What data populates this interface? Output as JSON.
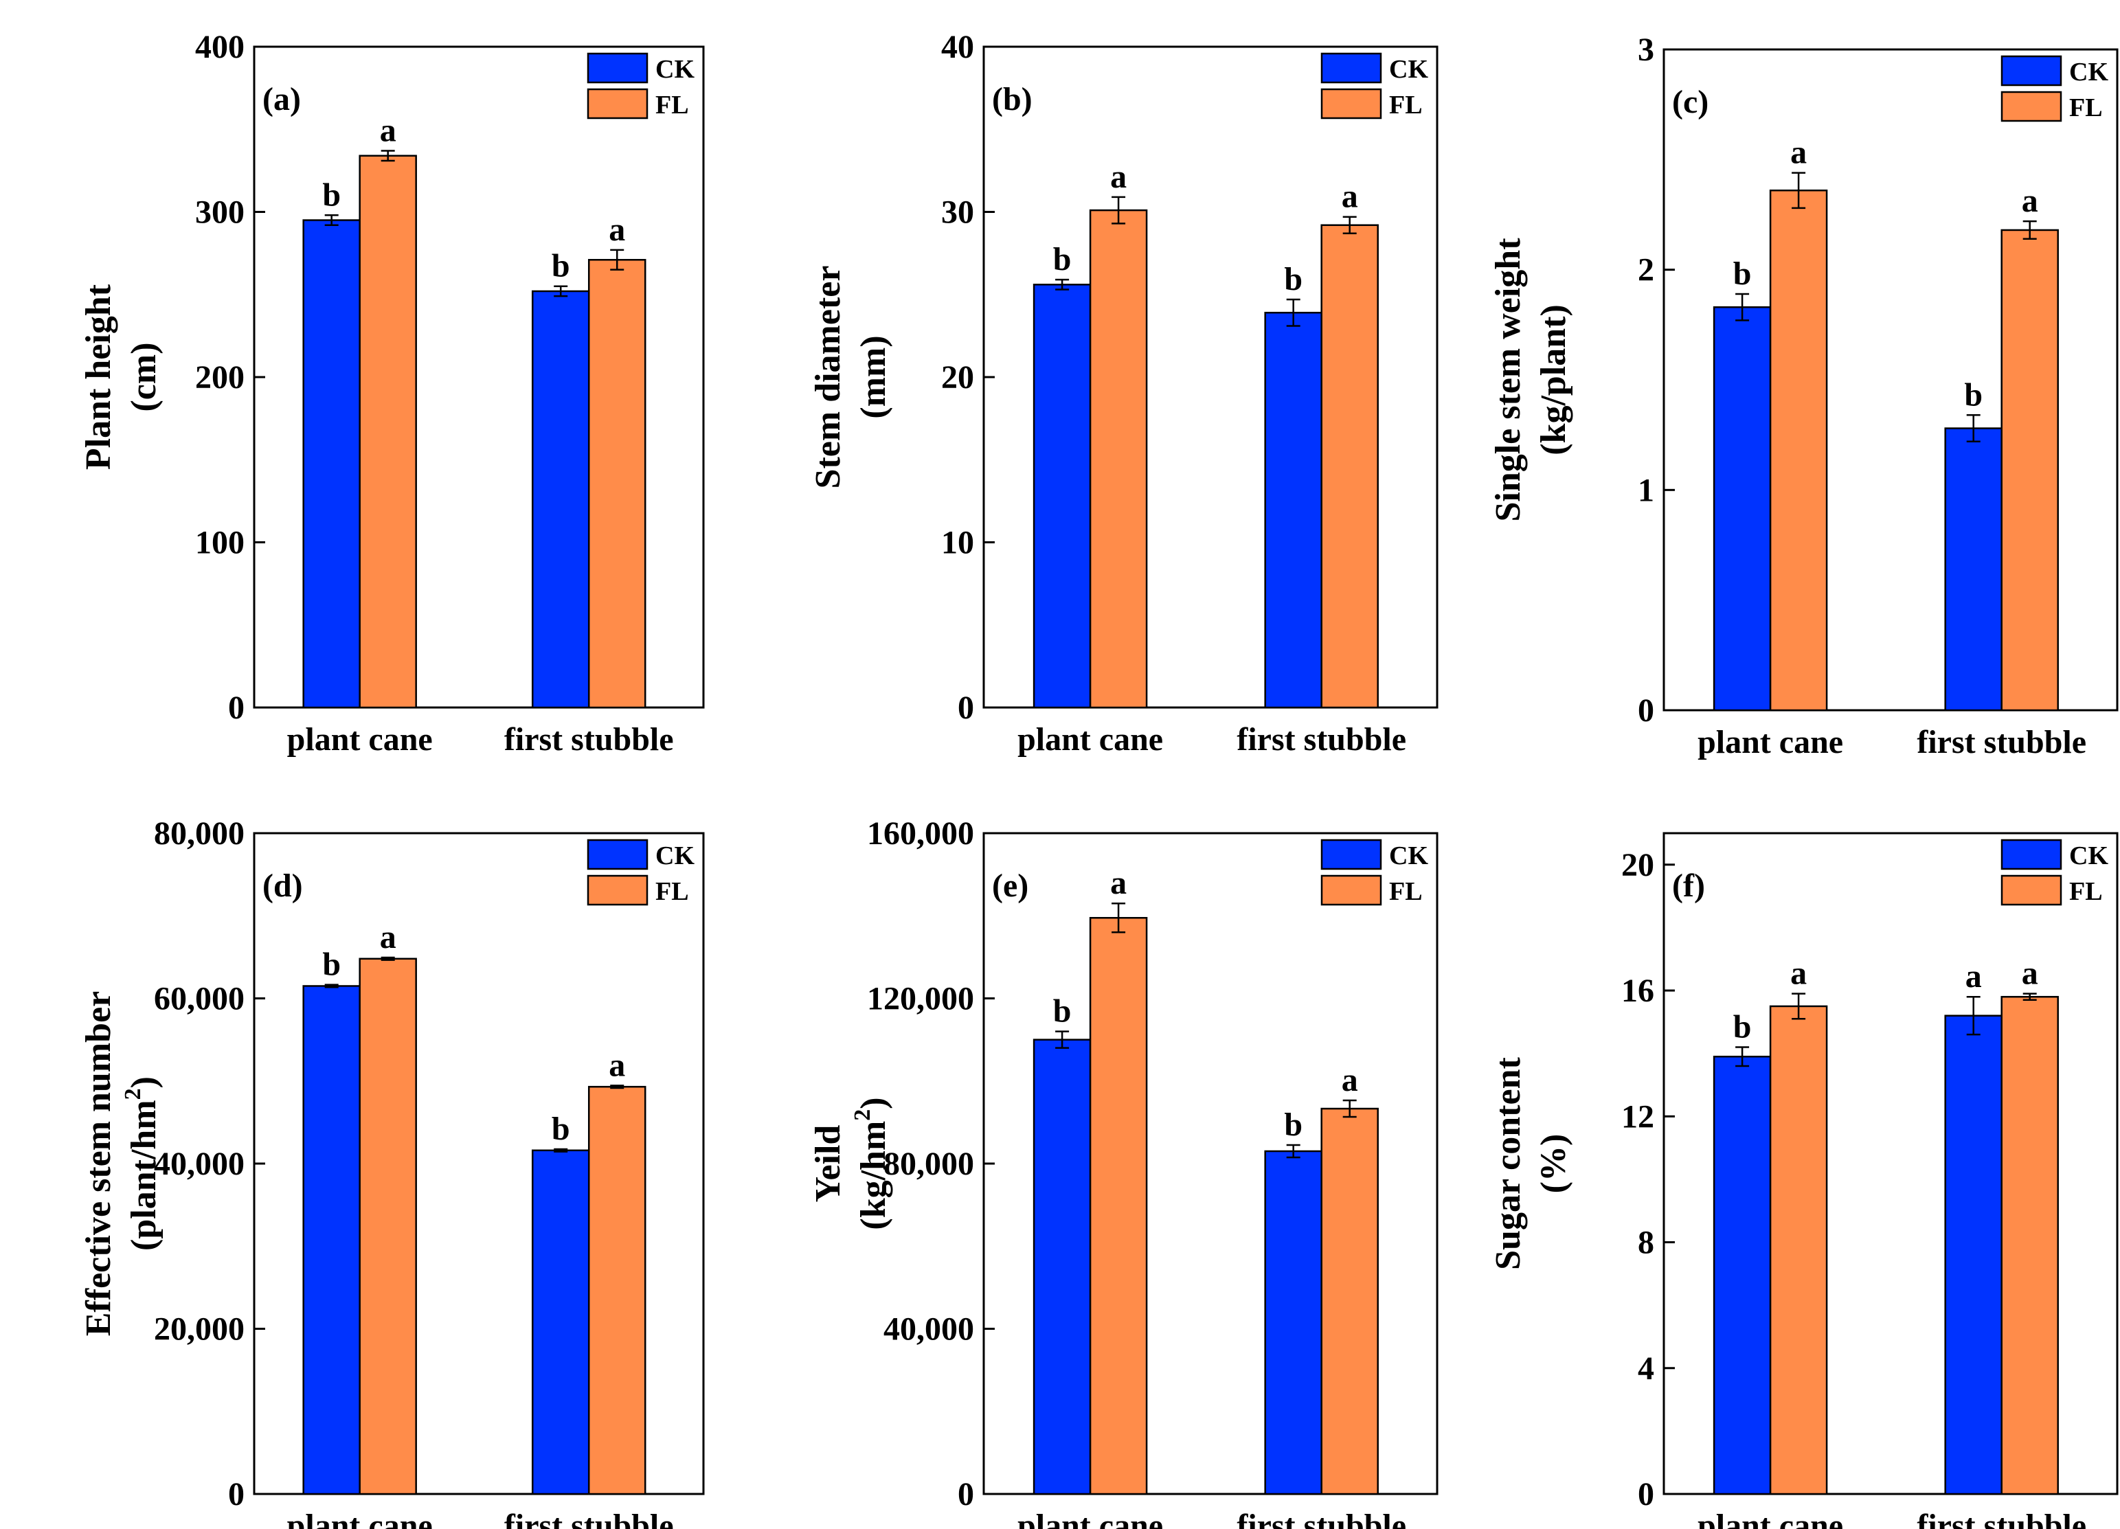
{
  "chart_data": [
    {
      "type": "bar",
      "panel": "(a)",
      "ylabel_line1": "Plant height",
      "ylabel_line2": "(cm)",
      "categories": [
        "plant cane",
        "first stubble"
      ],
      "ylim": [
        0,
        400
      ],
      "yticks": [
        0,
        100,
        200,
        300,
        400
      ],
      "ytick_labels": [
        "0",
        "100",
        "200",
        "300",
        "400"
      ],
      "series": [
        {
          "name": "CK",
          "color": "#0033ff",
          "values": [
            295,
            252
          ],
          "errors": [
            3,
            3
          ],
          "letters": [
            "b",
            "b"
          ]
        },
        {
          "name": "FL",
          "color": "#ff8c4a",
          "values": [
            334,
            271
          ],
          "errors": [
            3,
            6
          ],
          "letters": [
            "a",
            "a"
          ]
        }
      ]
    },
    {
      "type": "bar",
      "panel": "(b)",
      "ylabel_line1": "Stem diameter",
      "ylabel_line2": "(mm)",
      "categories": [
        "plant cane",
        "first stubble"
      ],
      "ylim": [
        0,
        40
      ],
      "yticks": [
        0,
        10,
        20,
        30,
        40
      ],
      "ytick_labels": [
        "0",
        "10",
        "20",
        "30",
        "40"
      ],
      "series": [
        {
          "name": "CK",
          "color": "#0033ff",
          "values": [
            25.6,
            23.9
          ],
          "errors": [
            0.3,
            0.8
          ],
          "letters": [
            "b",
            "b"
          ]
        },
        {
          "name": "FL",
          "color": "#ff8c4a",
          "values": [
            30.1,
            29.2
          ],
          "errors": [
            0.8,
            0.5
          ],
          "letters": [
            "a",
            "a"
          ]
        }
      ]
    },
    {
      "type": "bar",
      "panel": "(c)",
      "ylabel_line1": "Single stem weight",
      "ylabel_line2": "(kg/plant)",
      "categories": [
        "plant cane",
        "first stubble"
      ],
      "ylim": [
        0,
        3
      ],
      "yticks": [
        0,
        1,
        2,
        3
      ],
      "ytick_labels": [
        "0",
        "1",
        "2",
        "3"
      ],
      "series": [
        {
          "name": "CK",
          "color": "#0033ff",
          "values": [
            1.83,
            1.28
          ],
          "errors": [
            0.06,
            0.06
          ],
          "letters": [
            "b",
            "b"
          ]
        },
        {
          "name": "FL",
          "color": "#ff8c4a",
          "values": [
            2.36,
            2.18
          ],
          "errors": [
            0.08,
            0.04
          ],
          "letters": [
            "a",
            "a"
          ]
        }
      ]
    },
    {
      "type": "bar",
      "panel": "(d)",
      "ylabel_line1": "Effective stem number",
      "ylabel_line2": "(plant/hm",
      "ylabel_sup": "2",
      "ylabel_close": ")",
      "categories": [
        "plant cane",
        "first stubble"
      ],
      "ylim": [
        0,
        80000
      ],
      "yticks": [
        0,
        20000,
        40000,
        60000,
        80000
      ],
      "ytick_labels": [
        "0",
        "20,000",
        "40,000",
        "60,000",
        "80,000"
      ],
      "series": [
        {
          "name": "CK",
          "color": "#0033ff",
          "values": [
            61500,
            41600
          ],
          "errors": [
            150,
            150
          ],
          "letters": [
            "b",
            "b"
          ]
        },
        {
          "name": "FL",
          "color": "#ff8c4a",
          "values": [
            64800,
            49300
          ],
          "errors": [
            150,
            150
          ],
          "letters": [
            "a",
            "a"
          ]
        }
      ]
    },
    {
      "type": "bar",
      "panel": "(e)",
      "ylabel_line1": "Yeild",
      "ylabel_line2": "(kg/hm",
      "ylabel_sup": "2",
      "ylabel_close": ")",
      "categories": [
        "plant cane",
        "first stubble"
      ],
      "ylim": [
        0,
        160000
      ],
      "yticks": [
        0,
        40000,
        80000,
        120000,
        160000
      ],
      "ytick_labels": [
        "0",
        "40,000",
        "80,000",
        "120,000",
        "160,000"
      ],
      "series": [
        {
          "name": "CK",
          "color": "#0033ff",
          "values": [
            110000,
            83000
          ],
          "errors": [
            2000,
            1500
          ],
          "letters": [
            "b",
            "b"
          ]
        },
        {
          "name": "FL",
          "color": "#ff8c4a",
          "values": [
            139500,
            93300
          ],
          "errors": [
            3500,
            2000
          ],
          "letters": [
            "a",
            "a"
          ]
        }
      ]
    },
    {
      "type": "bar",
      "panel": "(f)",
      "ylabel_line1": "Sugar content",
      "ylabel_line2": "(%)",
      "categories": [
        "plant cane",
        "first stubble"
      ],
      "ylim": [
        0,
        21
      ],
      "yticks": [
        0,
        4,
        8,
        12,
        16,
        20
      ],
      "ytick_labels": [
        "0",
        "4",
        "8",
        "12",
        "16",
        "20"
      ],
      "series": [
        {
          "name": "CK",
          "color": "#0033ff",
          "values": [
            13.9,
            15.2
          ],
          "errors": [
            0.3,
            0.6
          ],
          "letters": [
            "b",
            "a"
          ]
        },
        {
          "name": "FL",
          "color": "#ff8c4a",
          "values": [
            15.5,
            15.8
          ],
          "errors": [
            0.4,
            0.1
          ],
          "letters": [
            "a",
            "a"
          ]
        }
      ]
    }
  ]
}
